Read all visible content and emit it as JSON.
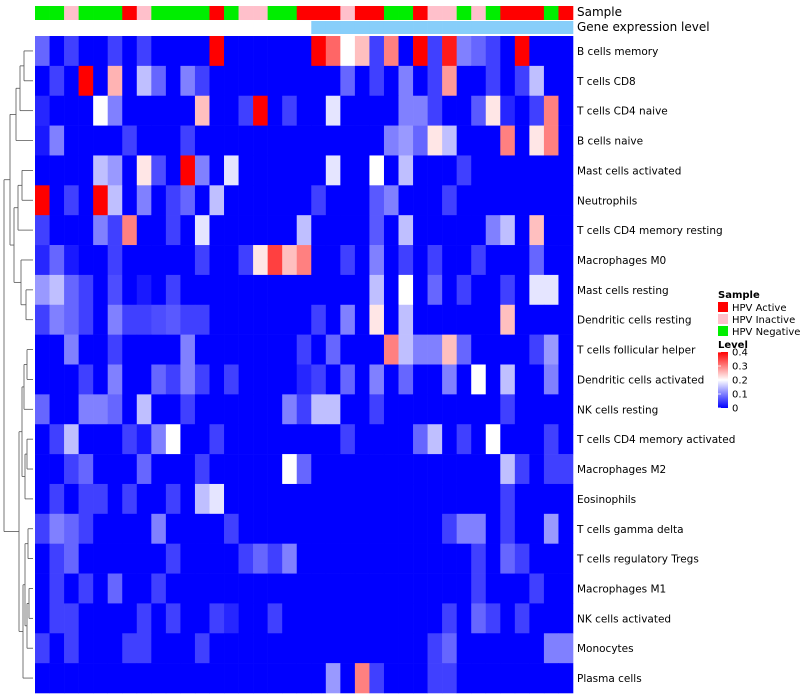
{
  "chart_data": {
    "type": "heatmap",
    "annotation_tracks": [
      {
        "name": "Sample",
        "values": [
          "HPV Negative",
          "HPV Negative",
          "HPV Inactive",
          "HPV Negative",
          "HPV Negative",
          "HPV Negative",
          "HPV Active",
          "HPV Inactive",
          "HPV Negative",
          "HPV Negative",
          "HPV Negative",
          "HPV Negative",
          "HPV Active",
          "HPV Negative",
          "HPV Inactive",
          "HPV Inactive",
          "HPV Negative",
          "HPV Negative",
          "HPV Active",
          "HPV Active",
          "HPV Active",
          "HPV Inactive",
          "HPV Active",
          "HPV Active",
          "HPV Negative",
          "HPV Negative",
          "HPV Active",
          "HPV Inactive",
          "HPV Inactive",
          "HPV Negative",
          "HPV Inactive",
          "HPV Negative",
          "HPV Active",
          "HPV Active",
          "HPV Active",
          "HPV Negative",
          "HPV Active"
        ]
      },
      {
        "name": "Gene expression level",
        "values": [
          "Low",
          "Low",
          "Low",
          "Low",
          "Low",
          "Low",
          "Low",
          "Low",
          "Low",
          "Low",
          "Low",
          "Low",
          "Low",
          "Low",
          "Low",
          "Low",
          "Low",
          "Low",
          "Low",
          "High",
          "High",
          "High",
          "High",
          "High",
          "High",
          "High",
          "High",
          "High",
          "High",
          "High",
          "High",
          "High",
          "High",
          "High",
          "High",
          "High",
          "High"
        ]
      }
    ],
    "rows": [
      "B cells memory",
      "T cells CD8",
      "T cells CD4 naive",
      "B cells naive",
      "Mast cells activated",
      "Neutrophils",
      "T cells CD4 memory resting",
      "Macrophages M0",
      "Mast cells resting",
      "Dendritic cells resting",
      "T cells follicular helper",
      "Dendritic cells activated",
      "NK cells resting",
      "T cells CD4 memory activated",
      "Macrophages M2",
      "Eosinophils",
      "T cells gamma delta",
      "T cells regulatory  Tregs",
      "Macrophages M1",
      "NK cells activated",
      "Monocytes",
      "Plasma cells"
    ],
    "values": [
      [
        0.08,
        0,
        0.05,
        0,
        0,
        0.05,
        0,
        0.05,
        0,
        0,
        0,
        0,
        0.4,
        0,
        0,
        0,
        0,
        0,
        0,
        0.4,
        0.32,
        0.2,
        0.25,
        0.05,
        0.3,
        0,
        0.4,
        0.05,
        0.38,
        0.1,
        0.08,
        0.05,
        0,
        0.4,
        0,
        0,
        0
      ],
      [
        0,
        0.05,
        0,
        0.4,
        0,
        0.26,
        0,
        0.15,
        0.08,
        0,
        0.1,
        0.05,
        0,
        0,
        0,
        0,
        0,
        0,
        0,
        0,
        0,
        0.08,
        0,
        0.05,
        0,
        0.1,
        0,
        0.05,
        0.28,
        0,
        0,
        0.05,
        0,
        0.05,
        0.15,
        0,
        0
      ],
      [
        0.03,
        0,
        0,
        0,
        0.2,
        0.1,
        0,
        0,
        0,
        0,
        0,
        0.25,
        0,
        0,
        0.05,
        0.4,
        0,
        0.05,
        0,
        0,
        0.18,
        0,
        0,
        0,
        0,
        0.1,
        0.1,
        0.05,
        0,
        0,
        0.07,
        0.22,
        0.03,
        0,
        0.05,
        0.3,
        0
      ],
      [
        0.02,
        0.1,
        0,
        0,
        0,
        0,
        0.05,
        0,
        0,
        0,
        0.05,
        0,
        0,
        0,
        0,
        0,
        0,
        0,
        0,
        0,
        0,
        0,
        0,
        0,
        0.1,
        0.12,
        0.08,
        0.22,
        0.15,
        0,
        0,
        0,
        0.3,
        0,
        0.22,
        0.3,
        0
      ],
      [
        0,
        0,
        0,
        0,
        0.15,
        0.12,
        0,
        0.22,
        0.06,
        0,
        0.4,
        0.1,
        0,
        0.18,
        0,
        0,
        0,
        0,
        0,
        0,
        0.18,
        0,
        0,
        0.2,
        0,
        0.15,
        0,
        0,
        0,
        0.05,
        0,
        0,
        0,
        0,
        0,
        0,
        0
      ],
      [
        0.4,
        0,
        0.05,
        0,
        0.4,
        0.15,
        0,
        0.1,
        0,
        0.05,
        0.08,
        0,
        0.15,
        0,
        0,
        0,
        0,
        0,
        0,
        0.05,
        0,
        0,
        0,
        0.07,
        0.1,
        0,
        0,
        0,
        0.05,
        0,
        0,
        0,
        0,
        0,
        0,
        0,
        0
      ],
      [
        0.05,
        0,
        0,
        0,
        0.1,
        0.05,
        0.3,
        0,
        0,
        0.05,
        0,
        0.18,
        0,
        0,
        0,
        0,
        0,
        0,
        0.15,
        0,
        0,
        0,
        0,
        0.07,
        0,
        0.15,
        0,
        0,
        0,
        0,
        0,
        0.1,
        0.15,
        0,
        0.25,
        0,
        0
      ],
      [
        0.03,
        0.08,
        0.02,
        0,
        0,
        0.05,
        0,
        0,
        0,
        0,
        0,
        0.05,
        0,
        0,
        0.05,
        0.22,
        0.35,
        0.25,
        0.3,
        0,
        0,
        0.05,
        0,
        0.1,
        0,
        0.05,
        0,
        0.05,
        0,
        0,
        0.05,
        0,
        0,
        0,
        0.08,
        0,
        0
      ],
      [
        0.12,
        0.15,
        0.08,
        0.05,
        0,
        0.06,
        0,
        0.02,
        0,
        0.05,
        0,
        0,
        0,
        0,
        0,
        0,
        0,
        0,
        0,
        0,
        0,
        0,
        0,
        0.15,
        0,
        0.2,
        0,
        0.08,
        0,
        0.05,
        0,
        0,
        0.05,
        0,
        0.18,
        0.18,
        0
      ],
      [
        0.05,
        0.1,
        0.08,
        0.05,
        0,
        0.1,
        0.05,
        0.05,
        0.06,
        0.07,
        0.05,
        0.05,
        0,
        0,
        0,
        0,
        0,
        0,
        0,
        0.05,
        0,
        0.1,
        0,
        0.22,
        0,
        0.15,
        0,
        0,
        0,
        0,
        0,
        0,
        0.25,
        0,
        0,
        0,
        0
      ],
      [
        0,
        0,
        0.1,
        0,
        0,
        0.05,
        0,
        0,
        0,
        0,
        0.1,
        0,
        0,
        0,
        0,
        0,
        0,
        0,
        0.05,
        0,
        0.08,
        0,
        0,
        0,
        0.3,
        0.15,
        0.1,
        0.1,
        0.25,
        0.08,
        0,
        0,
        0,
        0,
        0.05,
        0.12,
        0
      ],
      [
        0,
        0,
        0,
        0.05,
        0,
        0.1,
        0,
        0,
        0.08,
        0.05,
        0.1,
        0.05,
        0,
        0.05,
        0,
        0,
        0,
        0,
        0.03,
        0.05,
        0,
        0.08,
        0,
        0.1,
        0,
        0.08,
        0,
        0,
        0.1,
        0,
        0.2,
        0,
        0.15,
        0,
        0,
        0.1,
        0
      ],
      [
        0.08,
        0,
        0,
        0.1,
        0.1,
        0.08,
        0,
        0.15,
        0,
        0,
        0.05,
        0,
        0,
        0,
        0,
        0,
        0,
        0.1,
        0.05,
        0.15,
        0.15,
        0,
        0,
        0.05,
        0,
        0,
        0,
        0,
        0,
        0,
        0,
        0,
        0.05,
        0,
        0,
        0,
        0
      ],
      [
        0,
        0.05,
        0.15,
        0,
        0,
        0,
        0.05,
        0.02,
        0.1,
        0.2,
        0,
        0,
        0.05,
        0,
        0,
        0,
        0,
        0,
        0,
        0,
        0,
        0.05,
        0,
        0,
        0,
        0,
        0.08,
        0.15,
        0,
        0.05,
        0,
        0.2,
        0,
        0,
        0,
        0.05,
        0
      ],
      [
        0,
        0,
        0.05,
        0.08,
        0,
        0,
        0,
        0.08,
        0,
        0,
        0,
        0.05,
        0,
        0,
        0,
        0,
        0,
        0.2,
        0.08,
        0,
        0,
        0,
        0,
        0,
        0,
        0,
        0,
        0,
        0,
        0,
        0,
        0,
        0.15,
        0.05,
        0,
        0.05,
        0.05
      ],
      [
        0,
        0.05,
        0,
        0.05,
        0.05,
        0,
        0.05,
        0,
        0,
        0.05,
        0,
        0.15,
        0.18,
        0,
        0,
        0,
        0,
        0,
        0,
        0,
        0,
        0,
        0,
        0,
        0,
        0,
        0,
        0,
        0,
        0,
        0,
        0,
        0.05,
        0,
        0,
        0,
        0
      ],
      [
        0.05,
        0.1,
        0.08,
        0.05,
        0,
        0,
        0,
        0,
        0.1,
        0,
        0,
        0,
        0,
        0.05,
        0,
        0,
        0,
        0,
        0,
        0,
        0,
        0,
        0,
        0,
        0,
        0,
        0,
        0,
        0.05,
        0.1,
        0.1,
        0,
        0.05,
        0,
        0,
        0.12,
        0
      ],
      [
        0,
        0.05,
        0.08,
        0,
        0,
        0,
        0,
        0,
        0,
        0.05,
        0,
        0,
        0,
        0,
        0.05,
        0.08,
        0.05,
        0.1,
        0,
        0,
        0,
        0,
        0,
        0,
        0,
        0,
        0,
        0,
        0,
        0,
        0.05,
        0,
        0.08,
        0.05,
        0,
        0,
        0
      ],
      [
        0,
        0.05,
        0,
        0.05,
        0,
        0.08,
        0,
        0,
        0.05,
        0,
        0,
        0,
        0,
        0,
        0,
        0,
        0,
        0,
        0,
        0,
        0,
        0,
        0,
        0,
        0,
        0,
        0,
        0,
        0,
        0,
        0.05,
        0,
        0,
        0,
        0.05,
        0,
        0
      ],
      [
        0,
        0.05,
        0.05,
        0,
        0,
        0,
        0,
        0.05,
        0,
        0.05,
        0,
        0,
        0.05,
        0.03,
        0,
        0,
        0.05,
        0,
        0,
        0,
        0,
        0,
        0,
        0,
        0,
        0,
        0,
        0,
        0.05,
        0,
        0.08,
        0.05,
        0,
        0.05,
        0,
        0,
        0
      ],
      [
        0.05,
        0,
        0.05,
        0,
        0,
        0,
        0.05,
        0.05,
        0,
        0,
        0,
        0.05,
        0,
        0,
        0,
        0,
        0,
        0,
        0,
        0,
        0,
        0,
        0,
        0,
        0,
        0,
        0,
        0.05,
        0.08,
        0,
        0,
        0,
        0,
        0,
        0,
        0.1,
        0.1
      ],
      [
        0,
        0,
        0,
        0,
        0,
        0,
        0,
        0,
        0,
        0,
        0,
        0,
        0,
        0,
        0,
        0,
        0,
        0,
        0,
        0,
        0.12,
        0,
        0.3,
        0.05,
        0,
        0,
        0,
        0.05,
        0.05,
        0,
        0,
        0,
        0,
        0,
        0,
        0,
        0
      ]
    ],
    "color_scale": {
      "title": "Level",
      "ticks": [
        0,
        0.1,
        0.2,
        0.3,
        0.4
      ],
      "low": "#0000ff",
      "mid": "#ffffff",
      "high": "#ff0000",
      "mid_value": 0.2,
      "max_value": 0.4
    },
    "legend": {
      "title": "Sample",
      "entries": [
        {
          "label": "HPV Active",
          "color": "#ff0000"
        },
        {
          "label": "HPV Inactive",
          "color": "#ffc0cb"
        },
        {
          "label": "HPV Negative",
          "color": "#00ee00"
        }
      ]
    },
    "expression_colors": {
      "Low": "#ffffff",
      "High": "#87cefa"
    },
    "row_dendrogram": true
  }
}
